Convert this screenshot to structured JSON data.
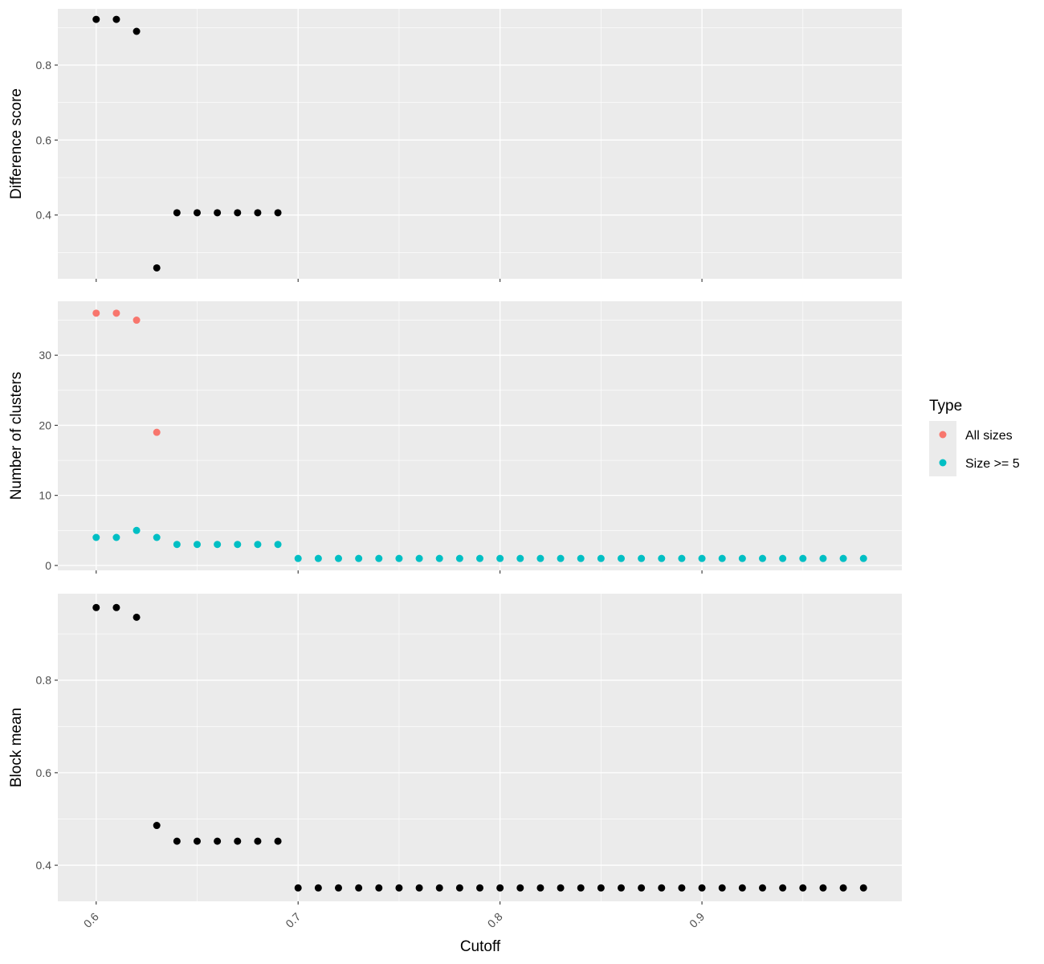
{
  "chart_data": {
    "type": "scatter",
    "xlabel": "Cutoff",
    "xlim": [
      0.581,
      0.999
    ],
    "x_ticks": [
      "0.6",
      "0.7",
      "0.8",
      "0.9"
    ],
    "grid": true,
    "legend": {
      "title": "Type",
      "position": "right",
      "entries": [
        {
          "label": "All sizes",
          "color": "#F8766D"
        },
        {
          "label": "Size >= 5",
          "color": "#00BFC4"
        }
      ]
    },
    "panels": [
      {
        "ylabel": "Difference score",
        "ylim": [
          0.23,
          0.95
        ],
        "y_ticks": [
          "0.4",
          "0.6",
          "0.8"
        ],
        "series": [
          {
            "color": "#000000",
            "x": [
              0.6,
              0.61,
              0.62,
              0.63,
              0.64,
              0.65,
              0.66,
              0.67,
              0.68,
              0.69
            ],
            "y": [
              0.922,
              0.922,
              0.89,
              0.259,
              0.406,
              0.406,
              0.406,
              0.406,
              0.406,
              0.406
            ]
          }
        ]
      },
      {
        "ylabel": "Number of clusters",
        "ylim": [
          -0.7,
          37.7
        ],
        "y_ticks": [
          "0",
          "10",
          "20",
          "30"
        ],
        "series": [
          {
            "name": "All sizes",
            "color": "#F8766D",
            "x": [
              0.6,
              0.61,
              0.62,
              0.63
            ],
            "y": [
              36,
              36,
              35,
              19
            ]
          },
          {
            "name": "Size >= 5",
            "color": "#00BFC4",
            "x": [
              0.6,
              0.61,
              0.62,
              0.63,
              0.64,
              0.65,
              0.66,
              0.67,
              0.68,
              0.69,
              0.7,
              0.71,
              0.72,
              0.73,
              0.74,
              0.75,
              0.76,
              0.77,
              0.78,
              0.79,
              0.8,
              0.81,
              0.82,
              0.83,
              0.84,
              0.85,
              0.86,
              0.87,
              0.88,
              0.89,
              0.9,
              0.91,
              0.92,
              0.93,
              0.94,
              0.95,
              0.96,
              0.97,
              0.98
            ],
            "y": [
              4,
              4,
              5,
              4,
              3,
              3,
              3,
              3,
              3,
              3,
              1,
              1,
              1,
              1,
              1,
              1,
              1,
              1,
              1,
              1,
              1,
              1,
              1,
              1,
              1,
              1,
              1,
              1,
              1,
              1,
              1,
              1,
              1,
              1,
              1,
              1,
              1,
              1,
              1
            ]
          }
        ]
      },
      {
        "ylabel": "Block mean",
        "ylim": [
          0.322,
          0.987
        ],
        "y_ticks": [
          "0.4",
          "0.6",
          "0.8"
        ],
        "series": [
          {
            "color": "#000000",
            "x": [
              0.6,
              0.61,
              0.62,
              0.63,
              0.64,
              0.65,
              0.66,
              0.67,
              0.68,
              0.69,
              0.7,
              0.71,
              0.72,
              0.73,
              0.74,
              0.75,
              0.76,
              0.77,
              0.78,
              0.79,
              0.8,
              0.81,
              0.82,
              0.83,
              0.84,
              0.85,
              0.86,
              0.87,
              0.88,
              0.89,
              0.9,
              0.91,
              0.92,
              0.93,
              0.94,
              0.95,
              0.96,
              0.97,
              0.98
            ],
            "y": [
              0.957,
              0.957,
              0.936,
              0.486,
              0.452,
              0.452,
              0.452,
              0.452,
              0.452,
              0.452,
              0.351,
              0.351,
              0.351,
              0.351,
              0.351,
              0.351,
              0.351,
              0.351,
              0.351,
              0.351,
              0.351,
              0.351,
              0.351,
              0.351,
              0.351,
              0.351,
              0.351,
              0.351,
              0.351,
              0.351,
              0.351,
              0.351,
              0.351,
              0.351,
              0.351,
              0.351,
              0.351,
              0.351,
              0.351
            ]
          }
        ]
      }
    ]
  }
}
